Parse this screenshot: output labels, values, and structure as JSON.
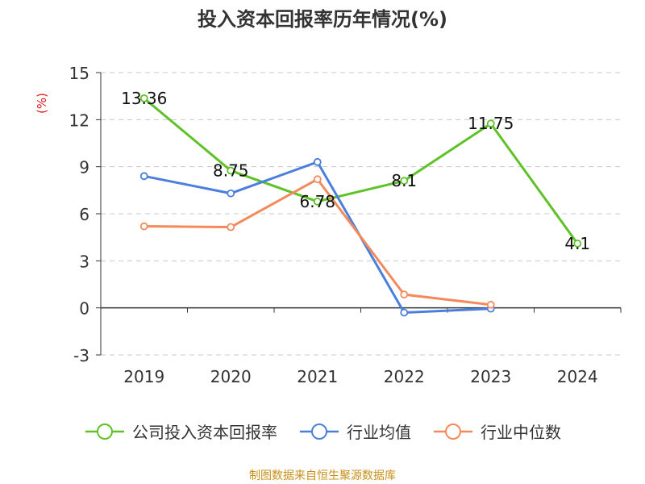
{
  "chart_data": {
    "type": "line",
    "title": "投入资本回报率历年情况(%)",
    "ylabel": "(%)",
    "xlabel": "",
    "categories": [
      "2019",
      "2020",
      "2021",
      "2022",
      "2023",
      "2024"
    ],
    "ylim": [
      -3,
      15
    ],
    "yticks": [
      15,
      12,
      9,
      6,
      3,
      0,
      -3
    ],
    "grid": true,
    "legend_position": "bottom",
    "series": [
      {
        "name": "公司投入资本回报率",
        "color": "#5ec228",
        "values": [
          13.36,
          8.75,
          6.78,
          8.1,
          11.75,
          4.1
        ],
        "labels": [
          "13.36",
          "8.75",
          "6.78",
          "8.1",
          "11.75",
          "4.1"
        ]
      },
      {
        "name": "行业均值",
        "color": "#4a7fdc",
        "values": [
          8.4,
          7.3,
          9.3,
          -0.3,
          -0.05,
          null
        ]
      },
      {
        "name": "行业中位数",
        "color": "#f48a5c",
        "values": [
          5.2,
          5.15,
          8.2,
          0.85,
          0.2,
          null
        ]
      }
    ]
  },
  "footer": {
    "source": "制图数据来自恒生聚源数据库"
  }
}
